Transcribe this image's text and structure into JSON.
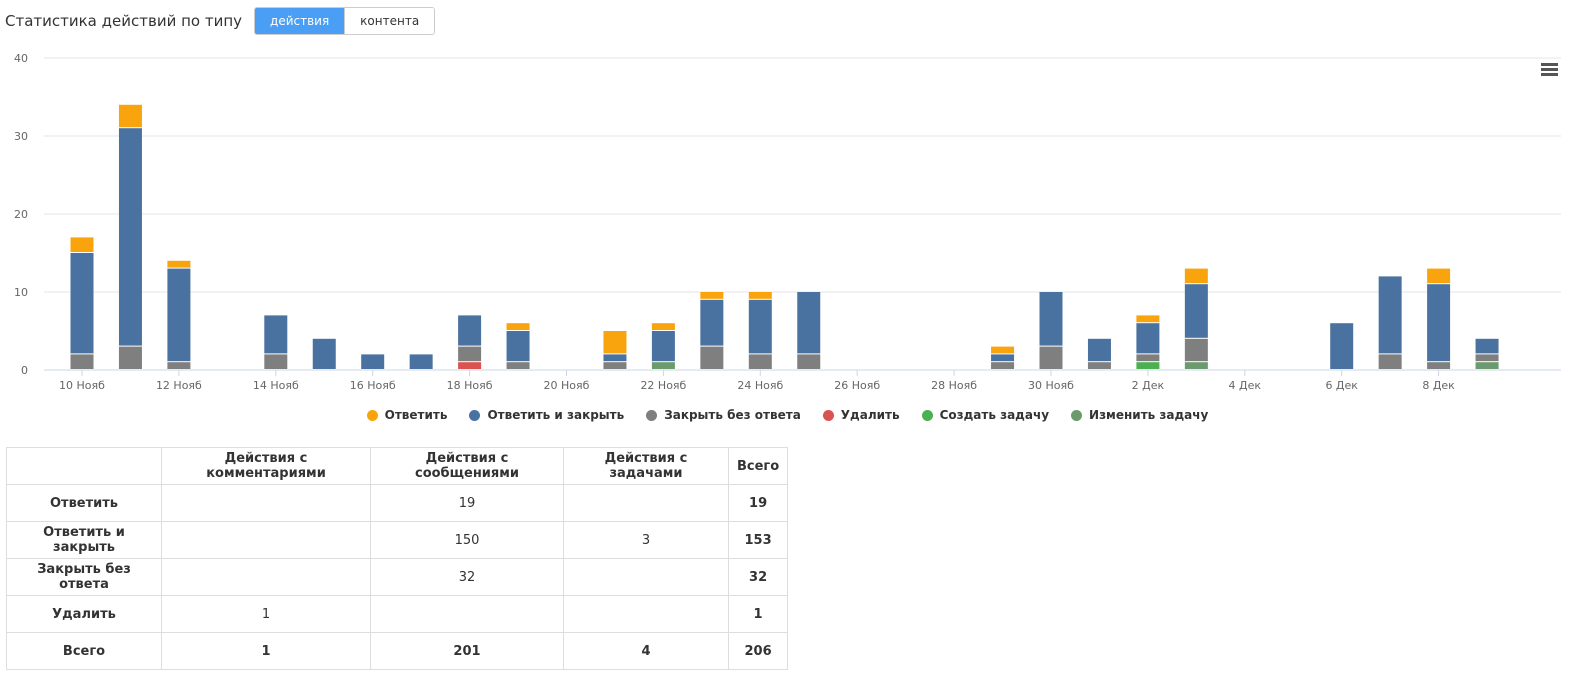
{
  "header": {
    "title": "Статистика действий по типу",
    "toggle_actions": "действия",
    "toggle_content": "контента"
  },
  "chart_data": {
    "type": "bar",
    "stacked": true,
    "ylim": [
      0,
      40
    ],
    "yticks": [
      0,
      10,
      20,
      30,
      40
    ],
    "grid": true,
    "legend_position": "bottom",
    "categories": [
      "10 Нояб",
      "11 Нояб",
      "12 Нояб",
      "13 Нояб",
      "14 Нояб",
      "15 Нояб",
      "16 Нояб",
      "17 Нояб",
      "18 Нояб",
      "19 Нояб",
      "20 Нояб",
      "21 Нояб",
      "22 Нояб",
      "23 Нояб",
      "24 Нояб",
      "25 Нояб",
      "26 Нояб",
      "27 Нояб",
      "28 Нояб",
      "29 Нояб",
      "30 Нояб",
      "1 Дек",
      "2 Дек",
      "3 Дек",
      "4 Дек",
      "5 Дек",
      "6 Дек",
      "7 Дек",
      "8 Дек",
      "9 Дек"
    ],
    "xtick_labels": [
      "10 Нояб",
      "12 Нояб",
      "14 Нояб",
      "16 Нояб",
      "18 Нояб",
      "20 Нояб",
      "22 Нояб",
      "24 Нояб",
      "26 Нояб",
      "28 Нояб",
      "30 Нояб",
      "2 Дек",
      "4 Дек",
      "6 Дек",
      "8 Дек"
    ],
    "series": [
      {
        "name": "Изменить задачу",
        "color": "#6a9a6e",
        "values": [
          0,
          0,
          0,
          0,
          0,
          0,
          0,
          0,
          0,
          0,
          0,
          0,
          1,
          0,
          0,
          0,
          0,
          0,
          0,
          0,
          0,
          0,
          0,
          1,
          0,
          0,
          0,
          0,
          0,
          1
        ]
      },
      {
        "name": "Создать задачу",
        "color": "#4caf50",
        "values": [
          0,
          0,
          0,
          0,
          0,
          0,
          0,
          0,
          0,
          0,
          0,
          0,
          0,
          0,
          0,
          0,
          0,
          0,
          0,
          0,
          0,
          0,
          1,
          0,
          0,
          0,
          0,
          0,
          0,
          0
        ]
      },
      {
        "name": "Удалить",
        "color": "#d9534f",
        "values": [
          0,
          0,
          0,
          0,
          0,
          0,
          0,
          0,
          1,
          0,
          0,
          0,
          0,
          0,
          0,
          0,
          0,
          0,
          0,
          0,
          0,
          0,
          0,
          0,
          0,
          0,
          0,
          0,
          0,
          0
        ]
      },
      {
        "name": "Закрыть без ответа",
        "color": "#7f7f7f",
        "values": [
          2,
          3,
          1,
          0,
          2,
          0,
          0,
          0,
          2,
          1,
          0,
          1,
          0,
          3,
          2,
          2,
          0,
          0,
          0,
          1,
          3,
          1,
          1,
          3,
          0,
          0,
          0,
          2,
          1,
          1
        ]
      },
      {
        "name": "Ответить и закрыть",
        "color": "#4a72a0",
        "values": [
          13,
          28,
          12,
          0,
          5,
          4,
          2,
          2,
          4,
          4,
          0,
          1,
          4,
          6,
          7,
          8,
          0,
          0,
          0,
          1,
          7,
          3,
          4,
          7,
          0,
          0,
          6,
          10,
          10,
          2
        ]
      },
      {
        "name": "Ответить",
        "color": "#f9a40c",
        "values": [
          2,
          3,
          1,
          0,
          0,
          0,
          0,
          0,
          0,
          1,
          0,
          3,
          1,
          1,
          1,
          0,
          0,
          0,
          0,
          1,
          0,
          0,
          1,
          2,
          0,
          0,
          0,
          0,
          2,
          0
        ]
      }
    ]
  },
  "legend": [
    {
      "label": "Ответить",
      "color": "#f9a40c"
    },
    {
      "label": "Ответить и закрыть",
      "color": "#4a72a0"
    },
    {
      "label": "Закрыть без ответа",
      "color": "#7f7f7f"
    },
    {
      "label": "Удалить",
      "color": "#d9534f"
    },
    {
      "label": "Создать задачу",
      "color": "#4caf50"
    },
    {
      "label": "Изменить задачу",
      "color": "#6a9a6e"
    }
  ],
  "table": {
    "headers": [
      "",
      "Действия с комментариями",
      "Действия с сообщениями",
      "Действия с задачами",
      "Всего"
    ],
    "rows": [
      [
        "Ответить",
        "",
        "19",
        "",
        "19"
      ],
      [
        "Ответить и закрыть",
        "",
        "150",
        "3",
        "153"
      ],
      [
        "Закрыть без ответа",
        "",
        "32",
        "",
        "32"
      ],
      [
        "Удалить",
        "1",
        "",
        "",
        "1"
      ],
      [
        "Всего",
        "1",
        "201",
        "4",
        "206"
      ]
    ]
  }
}
